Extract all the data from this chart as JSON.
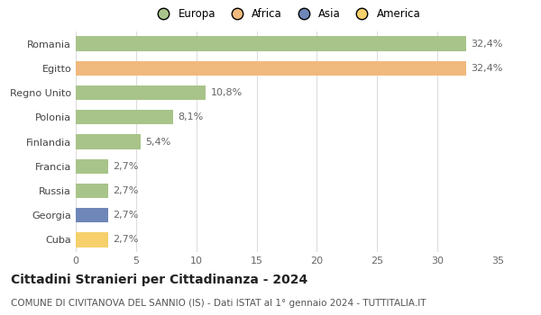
{
  "categories": [
    "Romania",
    "Egitto",
    "Regno Unito",
    "Polonia",
    "Finlandia",
    "Francia",
    "Russia",
    "Georgia",
    "Cuba"
  ],
  "values": [
    32.4,
    32.4,
    10.8,
    8.1,
    5.4,
    2.7,
    2.7,
    2.7,
    2.7
  ],
  "labels": [
    "32,4%",
    "32,4%",
    "10,8%",
    "8,1%",
    "5,4%",
    "2,7%",
    "2,7%",
    "2,7%",
    "2,7%"
  ],
  "colors": [
    "#a8c48a",
    "#f0b97d",
    "#a8c48a",
    "#a8c48a",
    "#a8c48a",
    "#a8c48a",
    "#a8c48a",
    "#6f86b8",
    "#f5d06b"
  ],
  "legend": [
    {
      "label": "Europa",
      "color": "#a8c48a"
    },
    {
      "label": "Africa",
      "color": "#f0b97d"
    },
    {
      "label": "Asia",
      "color": "#6f86b8"
    },
    {
      "label": "America",
      "color": "#f5d06b"
    }
  ],
  "xlim": [
    0,
    35
  ],
  "xticks": [
    0,
    5,
    10,
    15,
    20,
    25,
    30,
    35
  ],
  "title": "Cittadini Stranieri per Cittadinanza - 2024",
  "subtitle": "COMUNE DI CIVITANOVA DEL SANNIO (IS) - Dati ISTAT al 1° gennaio 2024 - TUTTITALIA.IT",
  "background_color": "#ffffff",
  "grid_color": "#dddddd",
  "bar_height": 0.6,
  "label_fontsize": 8,
  "tick_fontsize": 8,
  "title_fontsize": 10,
  "subtitle_fontsize": 7.5
}
